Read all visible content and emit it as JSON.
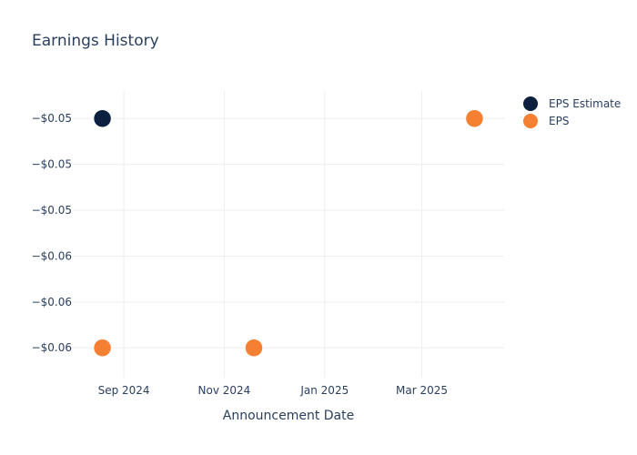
{
  "chart_data": {
    "type": "scatter",
    "title": "Earnings History",
    "xlabel": "Announcement Date",
    "ylabel": "",
    "x_ticks": [
      {
        "label": "Sep 2024",
        "date": "2024-09-01"
      },
      {
        "label": "Nov 2024",
        "date": "2024-11-01"
      },
      {
        "label": "Jan 2025",
        "date": "2025-01-01"
      },
      {
        "label": "Mar 2025",
        "date": "2025-03-01"
      }
    ],
    "y_ticks": [
      {
        "label": "−$0.05",
        "value": -0.05
      },
      {
        "label": "−$0.05",
        "value": -0.052
      },
      {
        "label": "−$0.05",
        "value": -0.054
      },
      {
        "label": "−$0.06",
        "value": -0.056
      },
      {
        "label": "−$0.06",
        "value": -0.058
      },
      {
        "label": "−$0.06",
        "value": -0.06
      }
    ],
    "xlim": [
      "2024-08-01",
      "2025-04-20"
    ],
    "ylim": [
      -0.0613,
      -0.0488
    ],
    "grid": true,
    "legend_position": "top-right",
    "series": [
      {
        "name": "EPS Estimate",
        "color": "#0b1f3f",
        "points": [
          {
            "date": "2024-08-19",
            "value": -0.05
          },
          {
            "date": "2024-11-19",
            "value": -0.06
          },
          {
            "date": "2025-04-02",
            "value": -0.05
          }
        ]
      },
      {
        "name": "EPS",
        "color": "#f58032",
        "points": [
          {
            "date": "2024-08-19",
            "value": -0.06
          },
          {
            "date": "2024-11-19",
            "value": -0.06
          },
          {
            "date": "2025-04-02",
            "value": -0.05
          }
        ]
      }
    ]
  }
}
